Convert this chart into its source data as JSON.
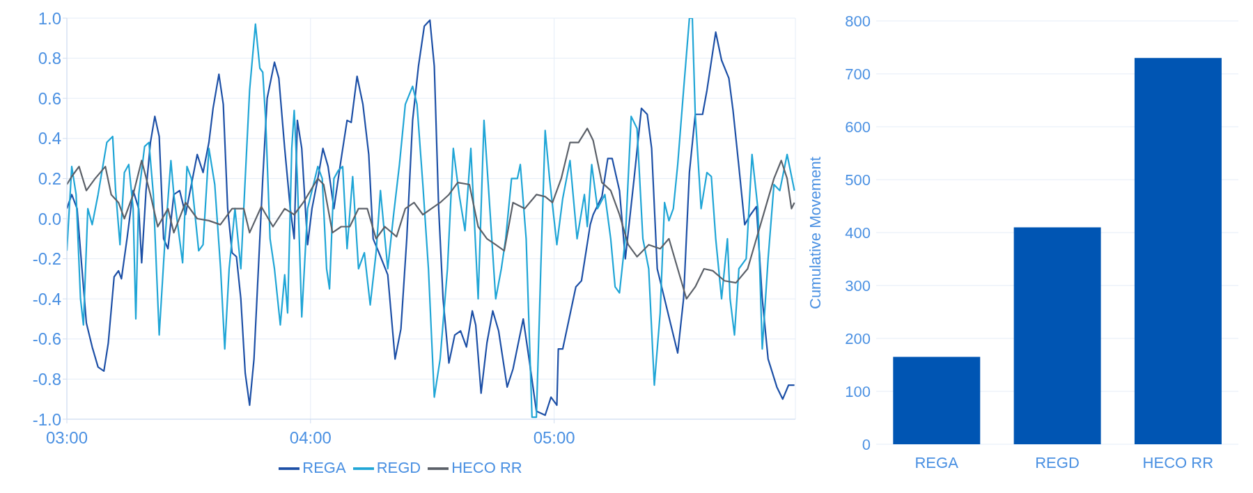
{
  "chart_data": [
    {
      "type": "line",
      "xlim": [
        3,
        5.99
      ],
      "xticks": [
        {
          "value": 3,
          "label": "03:00"
        },
        {
          "value": 4,
          "label": "04:00"
        },
        {
          "value": 5,
          "label": "05:00"
        }
      ],
      "ylim": [
        -1,
        1
      ],
      "yticks": [
        {
          "value": -1,
          "label": "-1.0"
        },
        {
          "value": -0.8,
          "label": "-0.8"
        },
        {
          "value": -0.6,
          "label": "-0.6"
        },
        {
          "value": -0.4,
          "label": "-0.4"
        },
        {
          "value": -0.2,
          "label": "-0.2"
        },
        {
          "value": 0,
          "label": "0.0"
        },
        {
          "value": 0.2,
          "label": "0.2"
        },
        {
          "value": 0.4,
          "label": "0.4"
        },
        {
          "value": 0.6,
          "label": "0.6"
        },
        {
          "value": 0.8,
          "label": "0.8"
        },
        {
          "value": 1,
          "label": "1.0"
        }
      ],
      "grid": true,
      "legend": "bottom",
      "marker": "none",
      "line_style": "solid",
      "series": [
        {
          "name": "REGA",
          "color": "#1c4fa6",
          "x": [
            3.0,
            3.02,
            3.042,
            3.062,
            3.08,
            3.104,
            3.128,
            3.152,
            3.17,
            3.194,
            3.212,
            3.224,
            3.248,
            3.272,
            3.295,
            3.307,
            3.325,
            3.343,
            3.361,
            3.379,
            3.397,
            3.415,
            3.439,
            3.463,
            3.487,
            3.511,
            3.535,
            3.559,
            3.583,
            3.6,
            3.624,
            3.642,
            3.66,
            3.678,
            3.696,
            3.714,
            3.732,
            3.75,
            3.768,
            3.786,
            3.804,
            3.822,
            3.852,
            3.87,
            3.894,
            3.917,
            3.933,
            3.946,
            3.964,
            3.988,
            4.006,
            4.03,
            4.051,
            4.072,
            4.096,
            4.126,
            4.15,
            4.167,
            4.191,
            4.215,
            4.239,
            4.257,
            4.281,
            4.317,
            4.347,
            4.371,
            4.395,
            4.419,
            4.443,
            4.467,
            4.49,
            4.508,
            4.526,
            4.544,
            4.568,
            4.592,
            4.616,
            4.64,
            4.664,
            4.678,
            4.7,
            4.724,
            4.748,
            4.772,
            4.807,
            4.831,
            4.873,
            4.897,
            4.927,
            4.963,
            4.987,
            5.011,
            5.017,
            5.035,
            5.089,
            5.112,
            5.148,
            5.16,
            5.196,
            5.22,
            5.238,
            5.268,
            5.292,
            5.328,
            5.358,
            5.382,
            5.4,
            5.423,
            5.453,
            5.483,
            5.507,
            5.531,
            5.555,
            5.579,
            5.609,
            5.627,
            5.663,
            5.687,
            5.717,
            5.734,
            5.758,
            5.782,
            5.806,
            5.83,
            5.854,
            5.878,
            5.914,
            5.938,
            5.962,
            5.986
          ],
          "values": [
            0.05,
            0.12,
            0.05,
            -0.25,
            -0.52,
            -0.64,
            -0.74,
            -0.76,
            -0.62,
            -0.29,
            -0.26,
            -0.3,
            -0.09,
            0.14,
            0.05,
            -0.22,
            0.14,
            0.38,
            0.51,
            0.41,
            -0.1,
            -0.15,
            0.12,
            0.14,
            0.02,
            0.17,
            0.32,
            0.23,
            0.38,
            0.55,
            0.72,
            0.57,
            0.05,
            -0.17,
            -0.19,
            -0.4,
            -0.77,
            -0.93,
            -0.7,
            -0.25,
            0.2,
            0.6,
            0.78,
            0.7,
            0.35,
            0.05,
            -0.1,
            0.49,
            0.35,
            -0.13,
            0.05,
            0.2,
            0.35,
            0.26,
            0.05,
            0.3,
            0.49,
            0.48,
            0.71,
            0.57,
            0.32,
            -0.1,
            -0.17,
            -0.28,
            -0.7,
            -0.55,
            -0.1,
            0.49,
            0.76,
            0.96,
            0.99,
            0.76,
            0.05,
            -0.4,
            -0.72,
            -0.58,
            -0.56,
            -0.64,
            -0.46,
            -0.53,
            -0.87,
            -0.62,
            -0.46,
            -0.56,
            -0.84,
            -0.75,
            -0.5,
            -0.7,
            -0.96,
            -0.98,
            -0.89,
            -0.93,
            -0.65,
            -0.65,
            -0.34,
            -0.31,
            -0.03,
            0.02,
            0.11,
            0.3,
            0.3,
            0.14,
            -0.2,
            0.2,
            0.55,
            0.52,
            0.35,
            -0.25,
            -0.4,
            -0.55,
            -0.67,
            -0.4,
            0.23,
            0.52,
            0.52,
            0.64,
            0.93,
            0.79,
            0.7,
            0.54,
            0.26,
            -0.03,
            0.02,
            0.06,
            -0.4,
            -0.7,
            -0.84,
            -0.9,
            -0.83,
            -0.83
          ]
        },
        {
          "name": "REGD",
          "color": "#1fa5d6",
          "x": [
            3.0,
            3.02,
            3.038,
            3.056,
            3.068,
            3.086,
            3.104,
            3.128,
            3.164,
            3.188,
            3.2,
            3.218,
            3.236,
            3.254,
            3.272,
            3.283,
            3.295,
            3.319,
            3.337,
            3.355,
            3.379,
            3.403,
            3.427,
            3.439,
            3.475,
            3.493,
            3.511,
            3.541,
            3.559,
            3.583,
            3.607,
            3.631,
            3.648,
            3.666,
            3.69,
            3.714,
            3.732,
            3.75,
            3.774,
            3.792,
            3.804,
            3.816,
            3.834,
            3.852,
            3.876,
            3.894,
            3.906,
            3.923,
            3.933,
            3.946,
            3.964,
            3.988,
            4.03,
            4.048,
            4.066,
            4.078,
            4.096,
            4.114,
            4.132,
            4.15,
            4.173,
            4.197,
            4.221,
            4.245,
            4.269,
            4.287,
            4.317,
            4.341,
            4.365,
            4.389,
            4.419,
            4.437,
            4.461,
            4.484,
            4.508,
            4.532,
            4.562,
            4.586,
            4.61,
            4.634,
            4.658,
            4.688,
            4.712,
            4.736,
            4.76,
            4.783,
            4.801,
            4.825,
            4.849,
            4.861,
            4.885,
            4.909,
            4.927,
            4.945,
            4.963,
            4.981,
            5.011,
            5.035,
            5.065,
            5.094,
            5.124,
            5.136,
            5.154,
            5.178,
            5.208,
            5.232,
            5.25,
            5.268,
            5.292,
            5.316,
            5.34,
            5.364,
            5.388,
            5.411,
            5.435,
            5.453,
            5.471,
            5.489,
            5.507,
            5.531,
            5.555,
            5.567,
            5.579,
            5.603,
            5.627,
            5.645,
            5.663,
            5.687,
            5.711,
            5.722,
            5.74,
            5.758,
            5.788,
            5.812,
            5.836,
            5.854,
            5.878,
            5.902,
            5.926,
            5.956,
            5.986
          ],
          "values": [
            -0.16,
            0.26,
            0.12,
            -0.4,
            -0.53,
            0.05,
            -0.03,
            0.12,
            0.38,
            0.41,
            0.14,
            -0.13,
            0.23,
            0.27,
            0.05,
            -0.5,
            0.12,
            0.36,
            0.38,
            0.12,
            -0.58,
            -0.1,
            0.29,
            0.12,
            -0.22,
            0.26,
            0.2,
            -0.16,
            -0.13,
            0.35,
            0.17,
            -0.25,
            -0.65,
            -0.25,
            0.05,
            -0.25,
            0.2,
            0.64,
            0.97,
            0.75,
            0.73,
            0.49,
            -0.1,
            -0.25,
            -0.53,
            -0.28,
            -0.47,
            0.35,
            0.54,
            0.2,
            -0.49,
            0.05,
            0.26,
            0.2,
            -0.25,
            -0.35,
            0.2,
            0.24,
            0.26,
            -0.15,
            0.21,
            -0.25,
            -0.17,
            -0.43,
            -0.17,
            0.14,
            -0.25,
            0.02,
            0.27,
            0.57,
            0.66,
            0.57,
            0.17,
            -0.25,
            -0.89,
            -0.7,
            -0.25,
            0.35,
            0.12,
            -0.06,
            0.35,
            -0.4,
            0.49,
            0.05,
            -0.4,
            -0.25,
            -0.1,
            0.2,
            0.2,
            0.27,
            -0.1,
            -0.99,
            -0.99,
            -0.25,
            0.44,
            0.2,
            -0.13,
            0.1,
            0.29,
            -0.1,
            0.12,
            -0.04,
            0.27,
            0.05,
            0.12,
            -0.1,
            -0.34,
            -0.37,
            -0.1,
            0.51,
            0.45,
            -0.1,
            -0.25,
            -0.83,
            -0.47,
            0.08,
            -0.01,
            0.05,
            0.27,
            0.64,
            1.0,
            1.0,
            0.52,
            0.05,
            0.23,
            0.21,
            -0.1,
            -0.4,
            -0.1,
            -0.4,
            -0.58,
            -0.25,
            -0.2,
            0.32,
            0.05,
            -0.65,
            -0.2,
            0.17,
            0.14,
            0.32,
            0.14
          ]
        },
        {
          "name": "HECO RR",
          "color": "#5b6068",
          "x": [
            3.0,
            3.02,
            3.05,
            3.08,
            3.116,
            3.158,
            3.182,
            3.212,
            3.236,
            3.272,
            3.307,
            3.343,
            3.373,
            3.415,
            3.439,
            3.487,
            3.535,
            3.583,
            3.63,
            3.678,
            3.726,
            3.75,
            3.798,
            3.846,
            3.894,
            3.933,
            3.97,
            4.03,
            4.054,
            4.09,
            4.126,
            4.161,
            4.197,
            4.233,
            4.269,
            4.305,
            4.353,
            4.389,
            4.425,
            4.461,
            4.496,
            4.532,
            4.568,
            4.604,
            4.652,
            4.688,
            4.724,
            4.76,
            4.795,
            4.831,
            4.879,
            4.927,
            4.963,
            4.993,
            5.029,
            5.065,
            5.1,
            5.136,
            5.16,
            5.196,
            5.232,
            5.268,
            5.304,
            5.34,
            5.388,
            5.435,
            5.471,
            5.507,
            5.543,
            5.579,
            5.615,
            5.651,
            5.699,
            5.746,
            5.794,
            5.83,
            5.866,
            5.902,
            5.932,
            5.956,
            5.974,
            5.986
          ],
          "values": [
            0.17,
            0.21,
            0.26,
            0.14,
            0.2,
            0.26,
            0.12,
            0.08,
            0.0,
            0.12,
            0.29,
            0.12,
            -0.04,
            0.05,
            -0.07,
            0.08,
            0.0,
            -0.01,
            -0.03,
            0.05,
            0.05,
            -0.07,
            0.06,
            -0.04,
            0.05,
            0.02,
            0.08,
            0.2,
            0.17,
            -0.07,
            -0.04,
            -0.04,
            0.05,
            0.05,
            -0.1,
            -0.04,
            -0.09,
            0.05,
            0.08,
            0.02,
            0.05,
            0.08,
            0.12,
            0.18,
            0.17,
            -0.04,
            -0.1,
            -0.13,
            -0.16,
            0.08,
            0.05,
            0.12,
            0.11,
            0.08,
            0.2,
            0.38,
            0.38,
            0.45,
            0.39,
            0.18,
            0.14,
            0.02,
            -0.13,
            -0.19,
            -0.13,
            -0.15,
            -0.1,
            -0.25,
            -0.4,
            -0.34,
            -0.25,
            -0.26,
            -0.31,
            -0.32,
            -0.25,
            -0.1,
            0.05,
            0.2,
            0.29,
            0.2,
            0.05,
            0.08
          ]
        }
      ]
    },
    {
      "type": "bar",
      "categories": [
        "REGA",
        "REGD",
        "HECO RR"
      ],
      "values": [
        165,
        410,
        730
      ],
      "color": "#0055b3",
      "ylabel": "Cumulative Movement",
      "ylim": [
        0,
        800
      ],
      "yticks": [
        0,
        100,
        200,
        300,
        400,
        500,
        600,
        700,
        800
      ],
      "grid": "y"
    }
  ]
}
